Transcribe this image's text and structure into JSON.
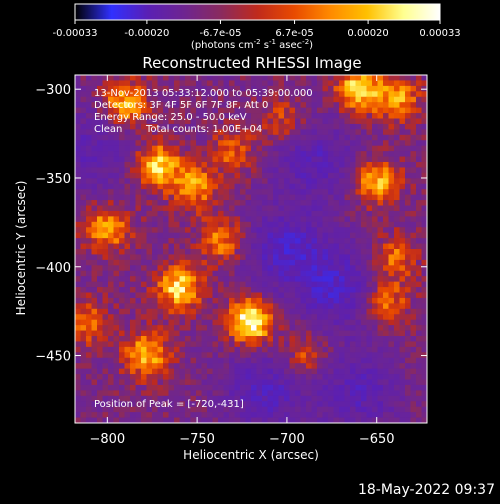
{
  "colorbar": {
    "tick_labels": [
      "-0.00033",
      "-0.00020",
      "-6.7e-05",
      "6.7e-05",
      "0.00020",
      "0.00033"
    ],
    "tick_values": [
      -0.00033,
      -0.0002,
      -6.7e-05,
      6.7e-05,
      0.0002,
      0.00033
    ],
    "range": [
      -0.00033,
      0.00033
    ],
    "units_text": "(photons cm",
    "units_exp1": "-2",
    "units_mid": " s",
    "units_exp2": "-1",
    "units_end": " asec",
    "units_exp3": "-2",
    "units_close": ")"
  },
  "title": "Reconstructed RHESSI Image",
  "annotations": {
    "time_range": "13-Nov-2013 05:33:12.000 to 05:39:00.000",
    "detectors": "Detectors: 3F 4F 5F 6F 7F 8F, Att 0",
    "energy_range": "Energy Range: 25.0 - 50.0 keV",
    "clean_label": "Clean",
    "total_counts": "Total counts: 1.00E+04",
    "peak": "Position of Peak = [-720,-431]"
  },
  "axes": {
    "xlabel": "Heliocentric X (arcsec)",
    "ylabel": "Heliocentric Y (arcsec)",
    "xlim": [
      -818,
      -622
    ],
    "ylim": [
      -488,
      -292
    ],
    "xticks": [
      -800,
      -750,
      -700,
      -650
    ],
    "xtick_labels": [
      "−800",
      "−750",
      "−700",
      "−650"
    ],
    "yticks": [
      -300,
      -350,
      -400,
      -450
    ],
    "ytick_labels": [
      "−300",
      "−350",
      "−400",
      "−450"
    ]
  },
  "footer_date": "18-May-2022 09:37",
  "chart_data": {
    "type": "heatmap",
    "title": "Reconstructed RHESSI Image",
    "xlabel": "Heliocentric X (arcsec)",
    "ylabel": "Heliocentric Y (arcsec)",
    "x_range": [
      -818,
      -622
    ],
    "y_range": [
      -488,
      -292
    ],
    "value_range": [
      -0.00033,
      0.00033
    ],
    "colormap": [
      "#000000",
      "#3030ff",
      "#5a1fb4",
      "#6e2590",
      "#8a2a5e",
      "#c02a1c",
      "#e84a00",
      "#ff8a00",
      "#ffc000",
      "#ffff90",
      "#ffffff"
    ],
    "bright_sources": [
      {
        "x": -790,
        "y": -308,
        "level": 0.7
      },
      {
        "x": -772,
        "y": -343,
        "level": 0.75
      },
      {
        "x": -752,
        "y": -355,
        "level": 0.6
      },
      {
        "x": -800,
        "y": -378,
        "level": 0.65
      },
      {
        "x": -760,
        "y": -412,
        "level": 0.8
      },
      {
        "x": -720,
        "y": -431,
        "level": 1.0
      },
      {
        "x": -736,
        "y": -385,
        "level": 0.55
      },
      {
        "x": -778,
        "y": -450,
        "level": 0.7
      },
      {
        "x": -730,
        "y": -335,
        "level": 0.45
      },
      {
        "x": -702,
        "y": -318,
        "level": 0.4
      },
      {
        "x": -660,
        "y": -300,
        "level": 0.8
      },
      {
        "x": -638,
        "y": -306,
        "level": 0.6
      },
      {
        "x": -650,
        "y": -352,
        "level": 0.7
      },
      {
        "x": -640,
        "y": -395,
        "level": 0.5
      },
      {
        "x": -645,
        "y": -420,
        "level": 0.55
      },
      {
        "x": -690,
        "y": -450,
        "level": 0.45
      },
      {
        "x": -812,
        "y": -432,
        "level": 0.5
      }
    ],
    "dim_regions": [
      {
        "x": -700,
        "y": -390,
        "level": -0.55
      },
      {
        "x": -685,
        "y": -340,
        "level": -0.45
      },
      {
        "x": -672,
        "y": -412,
        "level": -0.55
      },
      {
        "x": -712,
        "y": -470,
        "level": -0.5
      },
      {
        "x": -810,
        "y": -335,
        "level": -0.4
      },
      {
        "x": -660,
        "y": -470,
        "level": -0.45
      }
    ],
    "peak_position": [
      -720,
      -431
    ]
  }
}
